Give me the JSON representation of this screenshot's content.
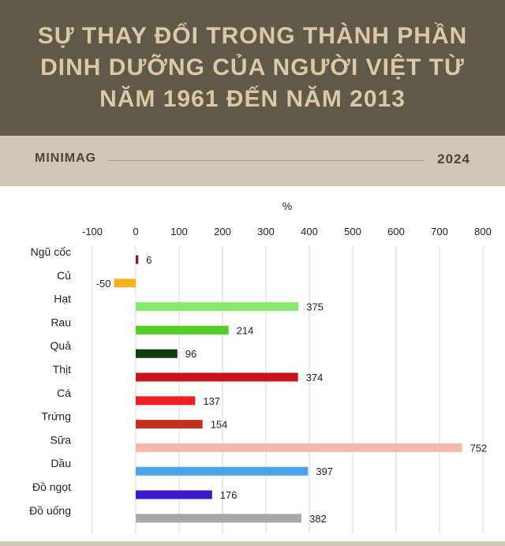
{
  "header": {
    "title": "SỰ THAY ĐỔI TRONG THÀNH PHẦN DINH DƯỠNG CỦA NGƯỜI VIỆT TỪ NĂM 1961 ĐẾN NĂM 2013"
  },
  "subbar": {
    "brand": "MINIMAG",
    "year": "2024"
  },
  "chart_data": {
    "type": "bar",
    "orientation": "horizontal",
    "xlabel": "%",
    "xlim": [
      -100,
      800
    ],
    "ticks": [
      -100,
      0,
      100,
      200,
      300,
      400,
      500,
      600,
      700,
      800
    ],
    "grid": true,
    "categories": [
      "Ngũ cốc",
      "Củ",
      "Hạt",
      "Rau",
      "Quả",
      "Thịt",
      "Cá",
      "Trứng",
      "Sữa",
      "Dầu",
      "Đồ ngọt",
      "Đồ uống"
    ],
    "values": [
      6,
      -50,
      375,
      214,
      96,
      374,
      137,
      154,
      752,
      397,
      176,
      382
    ],
    "colors": [
      "#8b1a1a",
      "#f2b21c",
      "#86e86c",
      "#52d12a",
      "#0f3d0f",
      "#c8141d",
      "#f01e23",
      "#c4301d",
      "#f3b9a9",
      "#4aa3ea",
      "#3a18c9",
      "#a8a8a8"
    ]
  }
}
